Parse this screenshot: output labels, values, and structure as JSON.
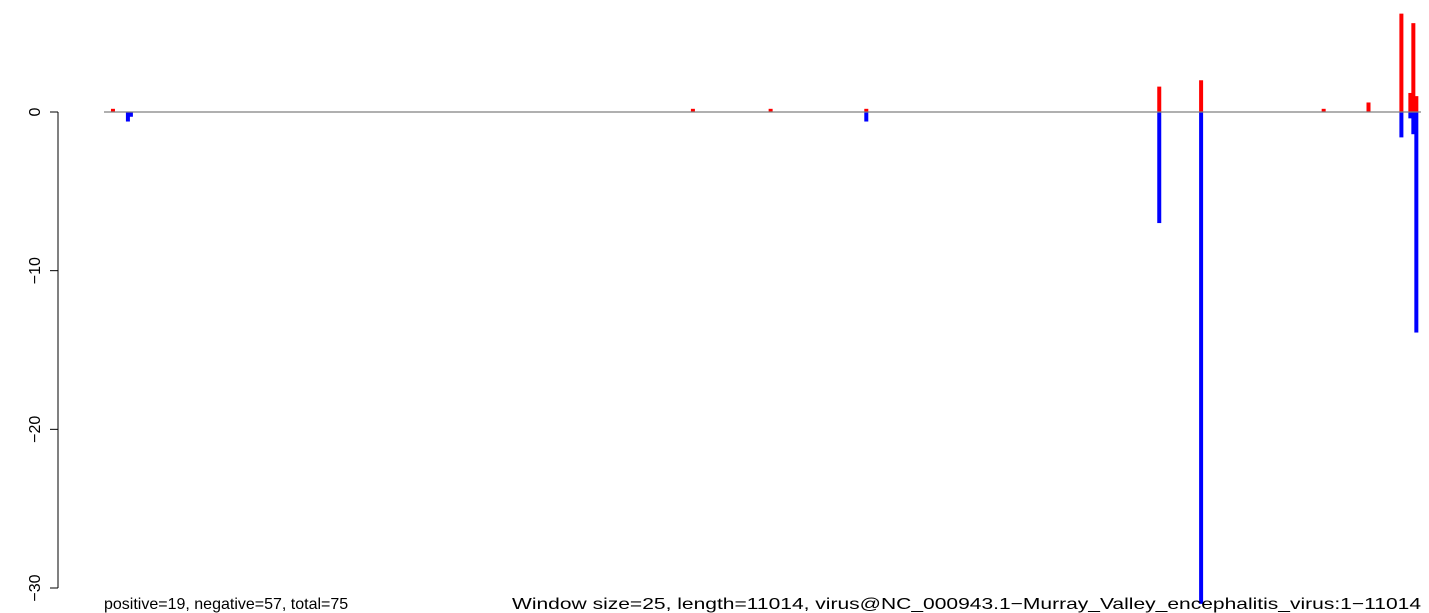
{
  "chart_data": {
    "type": "bar",
    "x_range": [
      0,
      11014
    ],
    "ylim": [
      -30,
      6
    ],
    "y_ticks": [
      0,
      -10,
      -20,
      -30
    ],
    "y_tick_labels": [
      "0",
      "−10",
      "−20",
      "−30"
    ],
    "baseline": 0,
    "grid": false,
    "legend": "none",
    "colors": {
      "positive": "#ff0000",
      "negative": "#0000ff",
      "baseline": "#808080"
    },
    "series": [
      {
        "sign": "positive",
        "points": [
          {
            "x": 75,
            "y": 0.2
          },
          {
            "x": 4925,
            "y": 0.2
          },
          {
            "x": 5575,
            "y": 0.2
          },
          {
            "x": 6375,
            "y": 0.2
          },
          {
            "x": 8825,
            "y": 1.6
          },
          {
            "x": 9175,
            "y": 2.0
          },
          {
            "x": 10200,
            "y": 0.2
          },
          {
            "x": 10575,
            "y": 0.6
          },
          {
            "x": 10850,
            "y": 6.2
          },
          {
            "x": 10925,
            "y": 1.2
          },
          {
            "x": 10950,
            "y": 5.6
          },
          {
            "x": 10975,
            "y": 1.0
          }
        ]
      },
      {
        "sign": "negative",
        "points": [
          {
            "x": 200,
            "y": -0.6
          },
          {
            "x": 225,
            "y": -0.3
          },
          {
            "x": 6375,
            "y": -0.6
          },
          {
            "x": 8825,
            "y": -7.0
          },
          {
            "x": 9175,
            "y": -31.0
          },
          {
            "x": 10850,
            "y": -1.6
          },
          {
            "x": 10925,
            "y": -0.4
          },
          {
            "x": 10950,
            "y": -1.4
          },
          {
            "x": 10975,
            "y": -13.9
          }
        ]
      }
    ],
    "annotations": {
      "left": "positive=19, negative=57, total=75",
      "right": "Window size=25, length=11014, virus@NC_000943.1−Murray_Valley_encephalitis_virus:1−11014"
    }
  }
}
